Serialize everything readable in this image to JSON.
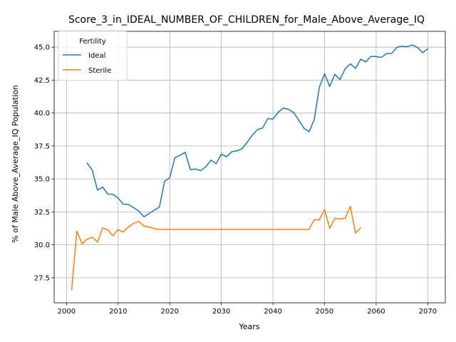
{
  "chart_data": {
    "type": "line",
    "title": "Score_3_in_IDEAL_NUMBER_OF_CHILDREN_for_Male_Above_Average_IQ",
    "xlabel": "Years",
    "ylabel": "% of Male Above_Average_IQ Population",
    "xlim": [
      1997.6,
      2073.4
    ],
    "ylim": [
      25.6,
      46.2
    ],
    "xticks": [
      2000,
      2010,
      2020,
      2030,
      2040,
      2050,
      2060,
      2070
    ],
    "xtick_labels": [
      "2000",
      "2010",
      "2020",
      "2030",
      "2040",
      "2050",
      "2060",
      "2070"
    ],
    "yticks": [
      27.5,
      30.0,
      32.5,
      35.0,
      37.5,
      40.0,
      42.5,
      45.0
    ],
    "ytick_labels": [
      "27.5",
      "30.0",
      "32.5",
      "35.0",
      "37.5",
      "40.0",
      "42.5",
      "45.0"
    ],
    "grid": true,
    "legend": {
      "title": "Fertility",
      "placement": "upper-left"
    },
    "series": [
      {
        "name": "Ideal",
        "color": "#1f77b4",
        "x": [
          2004,
          2005,
          2006,
          2007,
          2008,
          2009,
          2010,
          2011,
          2012,
          2013,
          2014,
          2015,
          2016,
          2017,
          2018,
          2019,
          2020,
          2021,
          2022,
          2023,
          2024,
          2025,
          2026,
          2027,
          2028,
          2029,
          2030,
          2031,
          2032,
          2033,
          2034,
          2035,
          2036,
          2037,
          2038,
          2039,
          2040,
          2041,
          2042,
          2043,
          2044,
          2045,
          2046,
          2047,
          2048,
          2049,
          2050,
          2051,
          2052,
          2053,
          2054,
          2055,
          2056,
          2057,
          2058,
          2059,
          2060,
          2061,
          2062,
          2063,
          2064,
          2065,
          2066,
          2067,
          2068,
          2069,
          2070
        ],
        "values": [
          36.2,
          35.65,
          34.15,
          34.38,
          33.85,
          33.83,
          33.55,
          33.08,
          33.07,
          32.82,
          32.56,
          32.13,
          32.38,
          32.63,
          32.87,
          34.82,
          35.1,
          36.62,
          36.8,
          37.02,
          35.71,
          35.75,
          35.62,
          35.93,
          36.43,
          36.16,
          36.89,
          36.68,
          37.06,
          37.13,
          37.29,
          37.78,
          38.32,
          38.74,
          38.87,
          39.58,
          39.54,
          40.05,
          40.38,
          40.28,
          40.04,
          39.45,
          38.85,
          38.58,
          39.5,
          41.97,
          42.98,
          42.02,
          42.94,
          42.54,
          43.37,
          43.73,
          43.39,
          44.08,
          43.88,
          44.3,
          44.29,
          44.22,
          44.52,
          44.52,
          44.99,
          45.08,
          45.04,
          45.17,
          44.98,
          44.58,
          44.87
        ]
      },
      {
        "name": "Sterile",
        "color": "#ff7f0e",
        "x": [
          2001,
          2002,
          2003,
          2004,
          2005,
          2006,
          2007,
          2008,
          2009,
          2010,
          2011,
          2012,
          2013,
          2014,
          2015,
          2016,
          2017,
          2018,
          2019,
          2020,
          2021,
          2022,
          2023,
          2024,
          2025,
          2026,
          2027,
          2028,
          2029,
          2030,
          2031,
          2032,
          2033,
          2034,
          2035,
          2036,
          2037,
          2038,
          2039,
          2040,
          2041,
          2042,
          2043,
          2044,
          2045,
          2046,
          2047,
          2048,
          2049,
          2050,
          2051,
          2052,
          2053,
          2054,
          2055,
          2056,
          2057
        ],
        "values": [
          26.6,
          31.03,
          30.08,
          30.42,
          30.58,
          30.21,
          31.28,
          31.13,
          30.69,
          31.16,
          30.97,
          31.36,
          31.63,
          31.78,
          31.43,
          31.35,
          31.23,
          31.17,
          31.17,
          31.17,
          31.17,
          31.17,
          31.17,
          31.17,
          31.17,
          31.17,
          31.17,
          31.17,
          31.17,
          31.17,
          31.17,
          31.17,
          31.17,
          31.17,
          31.17,
          31.17,
          31.17,
          31.17,
          31.17,
          31.17,
          31.17,
          31.17,
          31.17,
          31.17,
          31.17,
          31.17,
          31.17,
          31.9,
          31.9,
          32.68,
          31.25,
          32.01,
          31.96,
          32.02,
          32.92,
          30.9,
          31.28
        ]
      }
    ]
  }
}
